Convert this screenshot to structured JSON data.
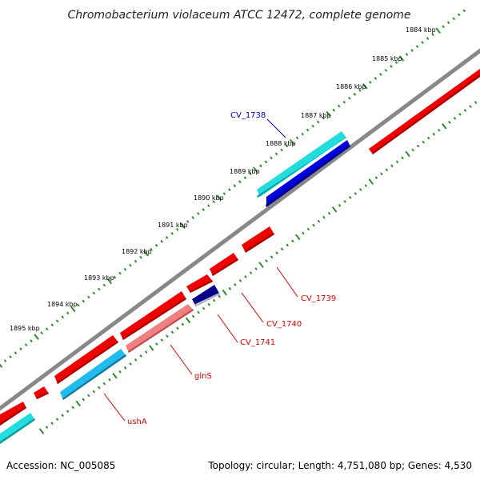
{
  "title": "Chromobacterium violaceum ATCC 12472, complete genome",
  "footer": {
    "accession": "Accession: NC_005085",
    "summary": "Topology: circular; Length: 4,751,080 bp; Genes: 4,530"
  },
  "ticks": [
    {
      "label": "1884 kbp"
    },
    {
      "label": "1885 kbp"
    },
    {
      "label": "1886 kbp"
    },
    {
      "label": "1887 kbp"
    },
    {
      "label": "1888 kbp"
    },
    {
      "label": "1889 kbp"
    },
    {
      "label": "1890 kbp"
    },
    {
      "label": "1891 kbp"
    },
    {
      "label": "1892 kbp"
    },
    {
      "label": "1893 kbp"
    },
    {
      "label": "1894 kbp"
    },
    {
      "label": "1895 kbp"
    }
  ],
  "gene_labels": [
    {
      "name": "CV_1738",
      "color": "#0000cc"
    },
    {
      "name": "CV_1739",
      "color": "#dd0000"
    },
    {
      "name": "CV_1740",
      "color": "#dd0000"
    },
    {
      "name": "CV_1741",
      "color": "#dd0000"
    },
    {
      "name": "glnS",
      "color": "#dd0000"
    },
    {
      "name": "ushA",
      "color": "#dd0000"
    }
  ],
  "colors": {
    "backbone": "#888888",
    "tick": "#2e8b2e",
    "gene_red": "#ee0000",
    "gene_pink": "#f08080",
    "gene_cyan": "#22dddd",
    "gene_skyblue": "#22bbee",
    "gene_blue": "#0000dd",
    "gene_navy": "#000088"
  }
}
